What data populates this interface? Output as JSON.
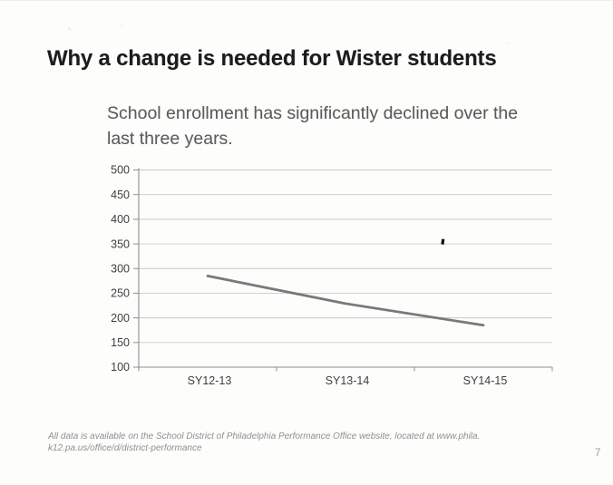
{
  "slide": {
    "title": "Why a change is needed for Wister students",
    "caption_lines": [
      "School enrollment has significantly declined over the",
      "last three years."
    ],
    "source_note_lines": [
      "All data is available on the School District of Philadelphia Performance Office website, located at www.phila.",
      "k12.pa.us/office/d/district-performance"
    ],
    "page_number": "7"
  },
  "chart_data": {
    "type": "line",
    "categories": [
      "SY12-13",
      "SY13-14",
      "SY14-15"
    ],
    "series": [
      {
        "name": "School enrollment",
        "values": [
          285,
          229,
          185
        ]
      }
    ],
    "title": "",
    "xlabel": "",
    "ylabel": "",
    "ylim": [
      100,
      500
    ],
    "yticks": [
      100,
      150,
      200,
      250,
      300,
      350,
      400,
      450,
      500
    ],
    "grid": "horizontal",
    "legend": "none",
    "colors": {
      "line": "#6e6e6e",
      "axis": "#8f8f8f",
      "gridline": "#c9c9c9",
      "tick_label": "#3f3f3f"
    }
  }
}
